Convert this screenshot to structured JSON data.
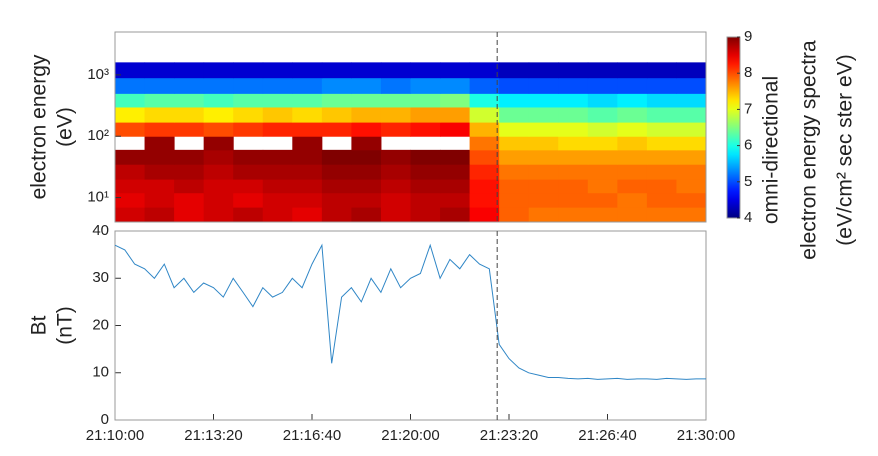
{
  "chart_data": [
    {
      "type": "heatmap",
      "ylabel": [
        "electron energy",
        "(eV)"
      ],
      "x": [
        "21:10:00",
        "21:11:00",
        "21:12:00",
        "21:13:00",
        "21:14:00",
        "21:15:00",
        "21:16:00",
        "21:17:00",
        "21:18:00",
        "21:19:00",
        "21:20:00",
        "21:21:00",
        "21:22:00",
        "21:23:00",
        "21:24:00",
        "21:25:00",
        "21:26:00",
        "21:27:00",
        "21:28:00",
        "21:29:00",
        "21:30:00"
      ],
      "y": [
        4,
        7,
        12,
        20,
        35,
        60,
        100,
        170,
        300,
        500,
        900,
        1600
      ],
      "values": [
        [
          8.6,
          8.7,
          8.5,
          8.6,
          8.7,
          8.6,
          8.5,
          8.7,
          8.8,
          8.6,
          8.7,
          8.8,
          8.4,
          7.9,
          7.8,
          7.8,
          7.8,
          7.8,
          7.8,
          7.8
        ],
        [
          8.5,
          8.6,
          8.5,
          8.6,
          8.5,
          8.6,
          8.6,
          8.7,
          8.7,
          8.6,
          8.7,
          8.7,
          8.3,
          7.9,
          7.9,
          7.9,
          7.9,
          7.8,
          7.9,
          7.9
        ],
        [
          8.6,
          8.6,
          8.7,
          8.6,
          8.6,
          8.7,
          8.7,
          8.8,
          8.8,
          8.7,
          8.8,
          8.8,
          8.3,
          7.9,
          7.9,
          7.9,
          7.8,
          7.9,
          7.9,
          7.8
        ],
        [
          8.7,
          8.8,
          8.8,
          8.7,
          8.8,
          8.8,
          8.8,
          8.9,
          8.9,
          8.8,
          8.9,
          8.9,
          8.2,
          7.8,
          7.8,
          7.8,
          7.8,
          7.8,
          7.8,
          7.8
        ],
        [
          8.9,
          8.9,
          8.9,
          8.8,
          8.9,
          8.9,
          8.9,
          9.0,
          9.0,
          8.9,
          9.0,
          9.0,
          8.0,
          7.6,
          7.6,
          7.6,
          7.6,
          7.6,
          7.6,
          7.6
        ],
        [
          null,
          8.9,
          null,
          8.9,
          null,
          null,
          8.9,
          null,
          8.9,
          null,
          null,
          null,
          7.8,
          7.4,
          7.4,
          7.3,
          7.3,
          7.4,
          7.3,
          7.3
        ],
        [
          8.0,
          8.1,
          8.1,
          8.0,
          8.1,
          8.2,
          8.2,
          8.2,
          8.3,
          8.2,
          8.3,
          8.4,
          7.5,
          7.0,
          7.0,
          7.0,
          6.9,
          7.0,
          6.9,
          6.9
        ],
        [
          7.2,
          7.3,
          7.3,
          7.2,
          7.3,
          7.4,
          7.3,
          7.4,
          7.5,
          7.5,
          7.6,
          7.6,
          6.9,
          6.4,
          6.4,
          6.4,
          6.3,
          6.4,
          6.3,
          6.3
        ],
        [
          6.2,
          6.3,
          6.3,
          6.2,
          6.3,
          6.3,
          6.3,
          6.4,
          6.4,
          6.4,
          6.4,
          6.5,
          6.0,
          5.8,
          5.8,
          5.8,
          5.7,
          5.8,
          5.7,
          5.7
        ],
        [
          5.2,
          5.2,
          5.2,
          5.2,
          5.2,
          5.2,
          5.2,
          5.3,
          5.3,
          5.2,
          5.3,
          5.3,
          5.1,
          5.0,
          5.0,
          5.0,
          5.0,
          5.0,
          5.0,
          5.0
        ],
        [
          4.4,
          4.4,
          4.4,
          4.4,
          4.4,
          4.4,
          4.4,
          4.4,
          4.4,
          4.4,
          4.4,
          4.4,
          4.4,
          4.3,
          4.3,
          4.3,
          4.3,
          4.3,
          4.3,
          4.3
        ]
      ],
      "xlim": [
        "21:10:00",
        "21:30:00"
      ],
      "ylim": [
        4,
        5000
      ],
      "log_y": true,
      "yticks": [
        {
          "value": 10,
          "label": "10¹"
        },
        {
          "value": 100,
          "label": "10²"
        },
        {
          "value": 1000,
          "label": "10³"
        }
      ],
      "colormap": "jet",
      "clim": [
        4,
        9
      ],
      "colorbar_ticks": [
        4,
        5,
        6,
        7,
        8,
        9
      ],
      "colorbar_label": [
        "omni-directional",
        "electron energy spectra",
        "(eV/cm² sec ster eV)"
      ],
      "vline": "21:22:56"
    },
    {
      "type": "line",
      "ylabel": [
        "Bt",
        "(nT)"
      ],
      "color": "#2f86c6",
      "x": [
        "21:10:00",
        "21:10:20",
        "21:10:40",
        "21:11:00",
        "21:11:20",
        "21:11:40",
        "21:12:00",
        "21:12:20",
        "21:12:40",
        "21:13:00",
        "21:13:20",
        "21:13:40",
        "21:14:00",
        "21:14:20",
        "21:14:40",
        "21:15:00",
        "21:15:20",
        "21:15:40",
        "21:16:00",
        "21:16:20",
        "21:16:40",
        "21:17:00",
        "21:17:20",
        "21:17:40",
        "21:18:00",
        "21:18:20",
        "21:18:40",
        "21:19:00",
        "21:19:20",
        "21:19:40",
        "21:20:00",
        "21:20:20",
        "21:20:40",
        "21:21:00",
        "21:21:20",
        "21:21:40",
        "21:22:00",
        "21:22:20",
        "21:22:40",
        "21:23:00",
        "21:23:20",
        "21:23:40",
        "21:24:00",
        "21:24:20",
        "21:24:40",
        "21:25:00",
        "21:25:20",
        "21:25:40",
        "21:26:00",
        "21:26:20",
        "21:26:40",
        "21:27:00",
        "21:27:20",
        "21:27:40",
        "21:28:00",
        "21:28:20",
        "21:28:40",
        "21:29:00",
        "21:29:20",
        "21:29:40",
        "21:30:00"
      ],
      "values": [
        37,
        36,
        33,
        32,
        30,
        33,
        28,
        30,
        27,
        29,
        28,
        26,
        30,
        27,
        24,
        28,
        26,
        27,
        30,
        28,
        33,
        37,
        12,
        26,
        28,
        25,
        30,
        27,
        32,
        28,
        30,
        31,
        37,
        30,
        34,
        32,
        35,
        33,
        32,
        16,
        13,
        11,
        10,
        9.5,
        9,
        9,
        8.8,
        8.7,
        8.8,
        8.6,
        8.7,
        8.8,
        8.6,
        8.7,
        8.7,
        8.6,
        8.8,
        8.7,
        8.6,
        8.7,
        8.7
      ],
      "xlim": [
        "21:10:00",
        "21:30:00"
      ],
      "xticks": [
        "21:10:00",
        "21:13:20",
        "21:16:40",
        "21:20:00",
        "21:23:20",
        "21:26:40",
        "21:30:00"
      ],
      "ylim": [
        0,
        40
      ],
      "yticks": [
        0,
        10,
        20,
        30,
        40
      ],
      "vline": "21:22:56"
    }
  ]
}
